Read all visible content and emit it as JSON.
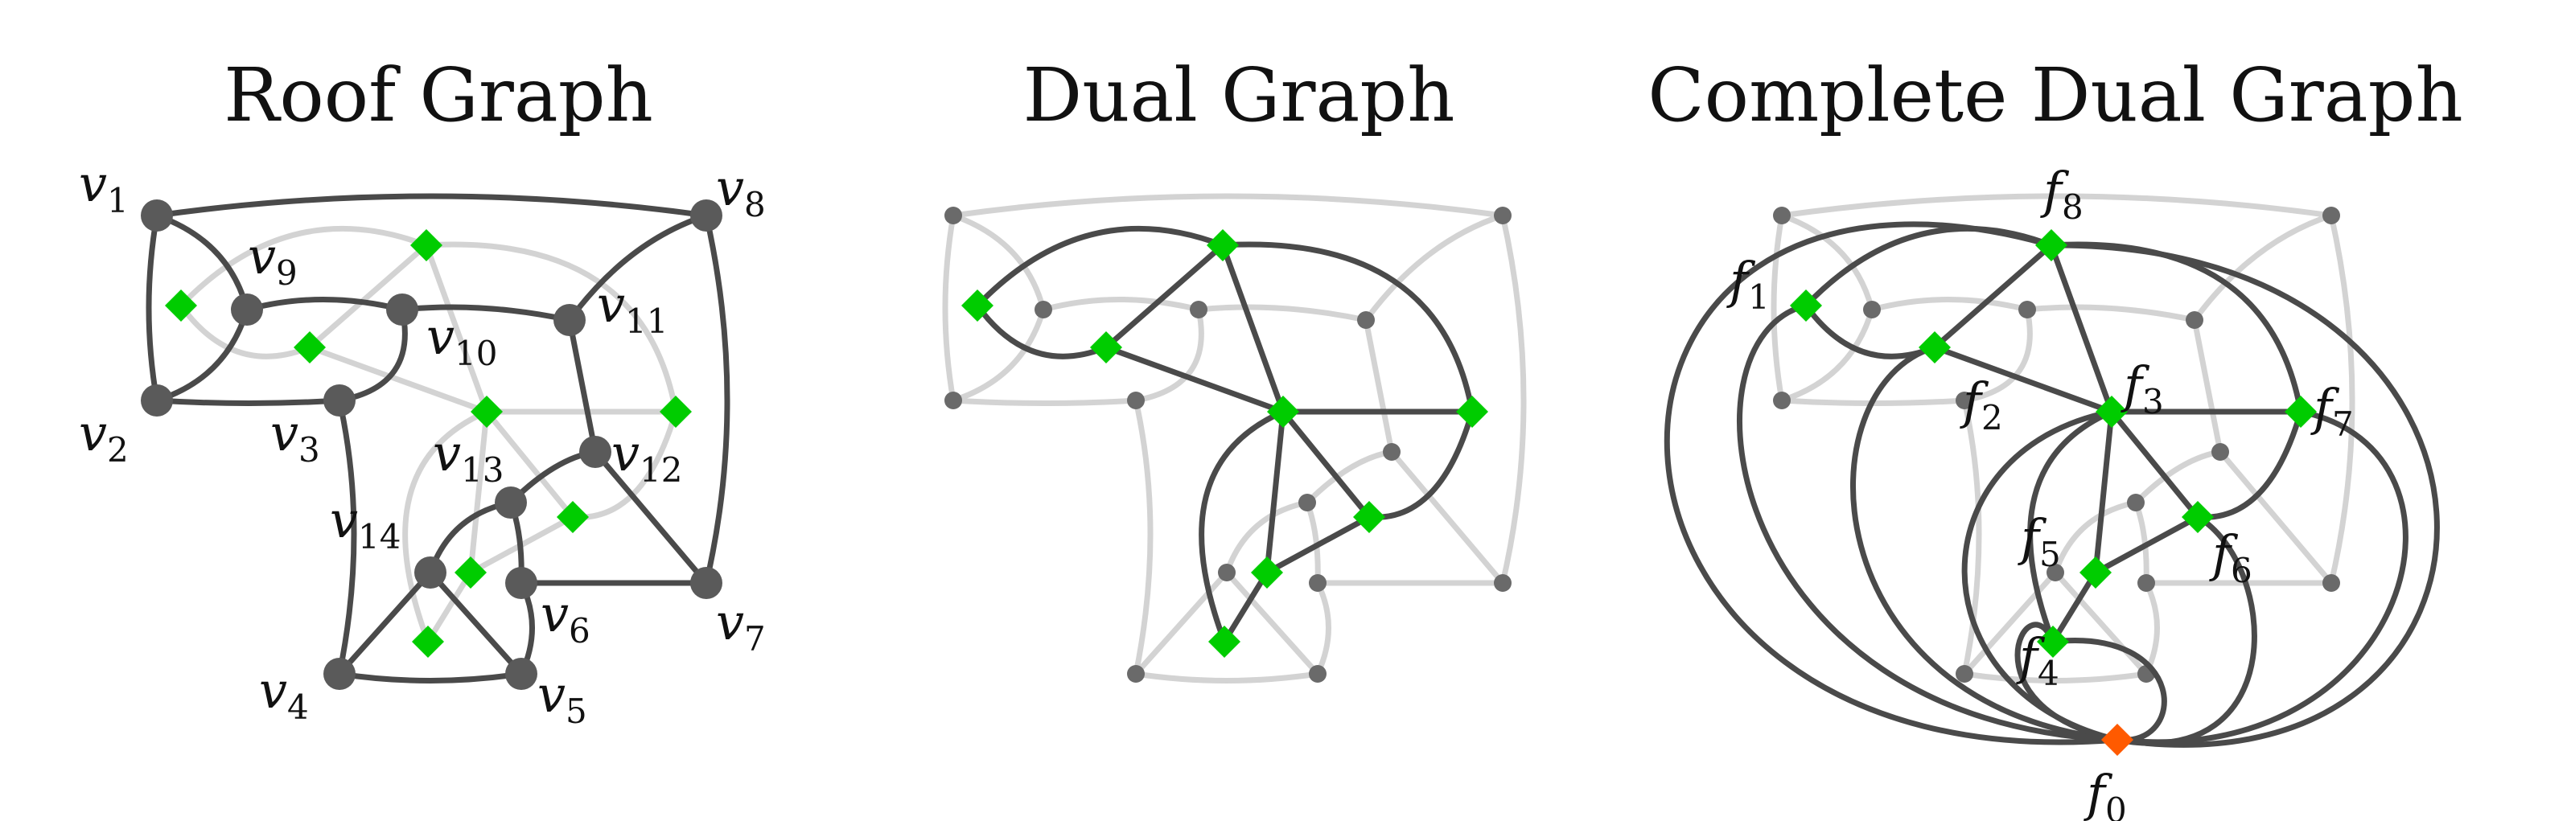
{
  "colors": {
    "dark": "#4a4a4a",
    "light": "#d3d3d3",
    "face_marker": "#00cc00",
    "outer_face_marker": "#ff5a00",
    "text": "#111111"
  },
  "panels": [
    {
      "id": "roof",
      "title": "Roof Graph"
    },
    {
      "id": "dual",
      "title": "Dual Graph"
    },
    {
      "id": "complete",
      "title": "Complete Dual Graph"
    }
  ],
  "roof": {
    "vertices": [
      {
        "id": "v1",
        "base": "v",
        "sub": "1"
      },
      {
        "id": "v2",
        "base": "v",
        "sub": "2"
      },
      {
        "id": "v3",
        "base": "v",
        "sub": "3"
      },
      {
        "id": "v4",
        "base": "v",
        "sub": "4"
      },
      {
        "id": "v5",
        "base": "v",
        "sub": "5"
      },
      {
        "id": "v6",
        "base": "v",
        "sub": "6"
      },
      {
        "id": "v7",
        "base": "v",
        "sub": "7"
      },
      {
        "id": "v8",
        "base": "v",
        "sub": "8"
      },
      {
        "id": "v9",
        "base": "v",
        "sub": "9"
      },
      {
        "id": "v10",
        "base": "v",
        "sub": "10"
      },
      {
        "id": "v11",
        "base": "v",
        "sub": "11"
      },
      {
        "id": "v12",
        "base": "v",
        "sub": "12"
      },
      {
        "id": "v13",
        "base": "v",
        "sub": "13"
      },
      {
        "id": "v14",
        "base": "v",
        "sub": "14"
      }
    ]
  },
  "complete": {
    "faces": [
      {
        "id": "f0",
        "base": "f",
        "sub": "0",
        "outer": true
      },
      {
        "id": "f1",
        "base": "f",
        "sub": "1"
      },
      {
        "id": "f2",
        "base": "f",
        "sub": "2"
      },
      {
        "id": "f3",
        "base": "f",
        "sub": "3"
      },
      {
        "id": "f4",
        "base": "f",
        "sub": "4"
      },
      {
        "id": "f5",
        "base": "f",
        "sub": "5"
      },
      {
        "id": "f6",
        "base": "f",
        "sub": "6"
      },
      {
        "id": "f7",
        "base": "f",
        "sub": "7"
      },
      {
        "id": "f8",
        "base": "f",
        "sub": "8"
      }
    ]
  }
}
